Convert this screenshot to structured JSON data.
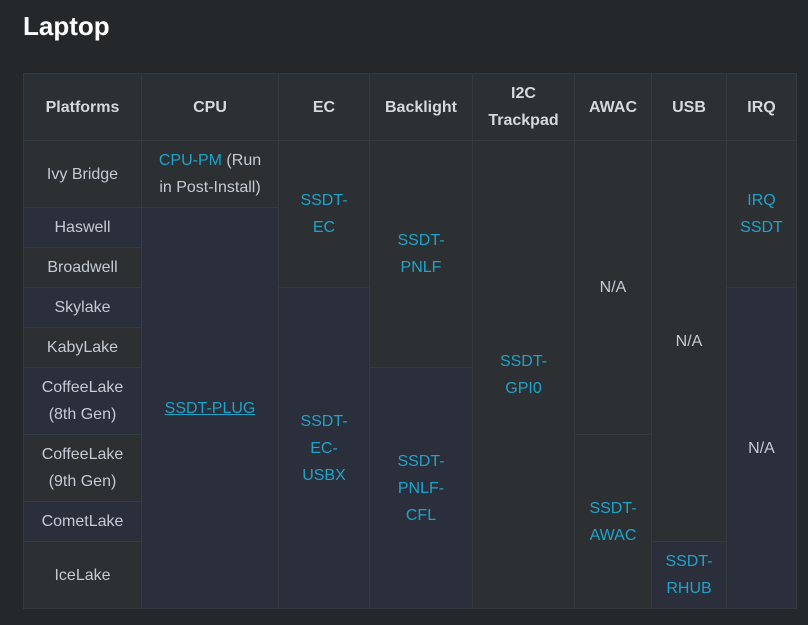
{
  "title": "Laptop",
  "headers": {
    "platforms": "Platforms",
    "cpu": "CPU",
    "ec": "EC",
    "backlight": "Backlight",
    "i2c_line1": "I2C",
    "i2c_line2": "Trackpad",
    "awac": "AWAC",
    "usb": "USB",
    "irq": "IRQ"
  },
  "platforms": [
    {
      "line1": "Ivy Bridge"
    },
    {
      "line1": "Haswell"
    },
    {
      "line1": "Broadwell"
    },
    {
      "line1": "Skylake"
    },
    {
      "line1": "KabyLake"
    },
    {
      "line1": "CoffeeLake",
      "line2": "(8th Gen)"
    },
    {
      "line1": "CoffeeLake",
      "line2": "(9th Gen)"
    },
    {
      "line1": "CometLake"
    },
    {
      "line1": "IceLake"
    }
  ],
  "cells": {
    "cpu_pm_link": "CPU-PM",
    "cpu_pm_note1": " (Run",
    "cpu_pm_note2": "in Post-Install)",
    "ssdt_plug": "SSDT-PLUG",
    "ssdt_ec_1": "SSDT-",
    "ssdt_ec_2": "EC",
    "ssdt_ec_usbx_1": "SSDT-",
    "ssdt_ec_usbx_2": "EC-",
    "ssdt_ec_usbx_3": "USBX",
    "ssdt_pnlf_1": "SSDT-",
    "ssdt_pnlf_2": "PNLF",
    "ssdt_pnlf_cfl_1": "SSDT-",
    "ssdt_pnlf_cfl_2": "PNLF-",
    "ssdt_pnlf_cfl_3": "CFL",
    "ssdt_gpi0_1": "SSDT-",
    "ssdt_gpi0_2": "GPI0",
    "awac_na": "N/A",
    "ssdt_awac_1": "SSDT-",
    "ssdt_awac_2": "AWAC",
    "usb_na": "N/A",
    "ssdt_rhub_1": "SSDT-",
    "ssdt_rhub_2": "RHUB",
    "irq_ssdt_1": "IRQ",
    "irq_ssdt_2": "SSDT",
    "irq_na": "N/A"
  },
  "colors": {
    "link": "#1fa3c9",
    "background": "#25282b",
    "title": "#ffffff"
  }
}
